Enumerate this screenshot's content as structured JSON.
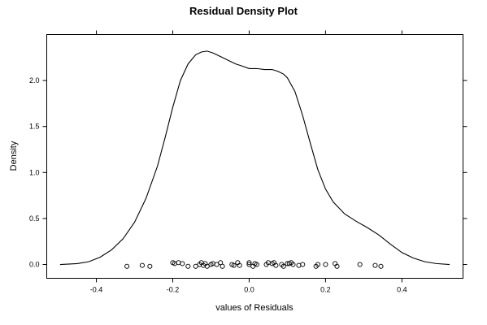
{
  "chart_data": {
    "type": "line",
    "title": "Residual Density Plot",
    "xlabel": "values of Residuals",
    "ylabel": "Density",
    "xlim": [
      -0.53,
      0.56
    ],
    "ylim": [
      -0.15,
      2.5
    ],
    "x_ticks": [
      -0.4,
      -0.2,
      0.0,
      0.2,
      0.4
    ],
    "x_tick_labels": [
      "-0.4",
      "-0.2",
      "0.0",
      "0.2",
      "0.4"
    ],
    "y_ticks": [
      0.0,
      0.5,
      1.0,
      1.5,
      2.0
    ],
    "y_tick_labels": [
      "0.0",
      "0.5",
      "1.0",
      "1.5",
      "2.0"
    ],
    "grid": false,
    "series": [
      {
        "kind": "density-curve",
        "x": [
          -0.495,
          -0.45,
          -0.42,
          -0.39,
          -0.36,
          -0.33,
          -0.3,
          -0.27,
          -0.24,
          -0.22,
          -0.2,
          -0.18,
          -0.16,
          -0.14,
          -0.125,
          -0.11,
          -0.095,
          -0.08,
          -0.065,
          -0.05,
          -0.035,
          -0.02,
          0.0,
          0.02,
          0.04,
          0.06,
          0.075,
          0.09,
          0.1,
          0.12,
          0.14,
          0.16,
          0.18,
          0.2,
          0.22,
          0.25,
          0.28,
          0.31,
          0.34,
          0.37,
          0.4,
          0.43,
          0.46,
          0.49,
          0.525
        ],
        "y": [
          0.0,
          0.01,
          0.03,
          0.08,
          0.16,
          0.28,
          0.46,
          0.72,
          1.07,
          1.38,
          1.71,
          2.0,
          2.18,
          2.28,
          2.31,
          2.32,
          2.3,
          2.27,
          2.24,
          2.21,
          2.18,
          2.16,
          2.13,
          2.13,
          2.12,
          2.12,
          2.1,
          2.07,
          2.03,
          1.88,
          1.62,
          1.32,
          1.03,
          0.82,
          0.68,
          0.55,
          0.47,
          0.4,
          0.32,
          0.22,
          0.13,
          0.07,
          0.03,
          0.01,
          0.0
        ]
      },
      {
        "kind": "rug-points",
        "x": [
          -0.32,
          -0.28,
          -0.26,
          -0.2,
          -0.195,
          -0.185,
          -0.175,
          -0.16,
          -0.14,
          -0.13,
          -0.125,
          -0.12,
          -0.115,
          -0.11,
          -0.1,
          -0.095,
          -0.085,
          -0.075,
          -0.07,
          -0.045,
          -0.04,
          -0.03,
          -0.025,
          0.0,
          0.0,
          0.01,
          0.015,
          0.02,
          0.045,
          0.05,
          0.06,
          0.065,
          0.07,
          0.085,
          0.09,
          0.1,
          0.105,
          0.11,
          0.115,
          0.13,
          0.14,
          0.175,
          0.18,
          0.2,
          0.225,
          0.23,
          0.29,
          0.33,
          0.345
        ],
        "y": [
          -0.02,
          -0.01,
          -0.02,
          0.02,
          0.01,
          0.02,
          0.01,
          -0.02,
          -0.02,
          0.0,
          0.02,
          -0.01,
          0.01,
          -0.02,
          0.0,
          0.01,
          0.0,
          0.02,
          -0.02,
          0.0,
          -0.01,
          0.02,
          -0.01,
          0.0,
          0.02,
          -0.02,
          0.01,
          0.0,
          0.0,
          0.02,
          0.01,
          0.02,
          -0.01,
          0.0,
          -0.02,
          0.01,
          0.01,
          0.02,
          0.0,
          -0.01,
          0.0,
          -0.02,
          0.0,
          0.0,
          0.01,
          -0.02,
          0.0,
          -0.01,
          -0.02
        ]
      }
    ]
  }
}
